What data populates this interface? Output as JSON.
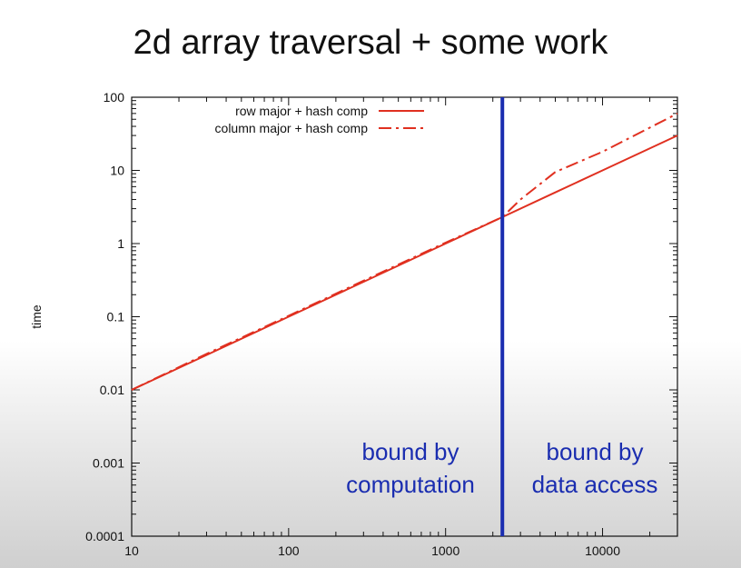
{
  "slide": {
    "title": "2d array traversal + some work"
  },
  "chart_data": {
    "type": "line",
    "title": "",
    "xlabel": "",
    "ylabel": "time",
    "xscale": "log",
    "yscale": "log",
    "xlim": [
      10,
      30000
    ],
    "ylim": [
      0.0001,
      100
    ],
    "x_ticks": [
      {
        "value": 10,
        "label": "10"
      },
      {
        "value": 100,
        "label": "100"
      },
      {
        "value": 1000,
        "label": "1000"
      },
      {
        "value": 10000,
        "label": "10000"
      }
    ],
    "y_ticks": [
      {
        "value": 0.0001,
        "label": "0.0001"
      },
      {
        "value": 0.001,
        "label": "0.001"
      },
      {
        "value": 0.01,
        "label": "0.01"
      },
      {
        "value": 0.1,
        "label": "0.1"
      },
      {
        "value": 1,
        "label": "1"
      },
      {
        "value": 10,
        "label": "10"
      },
      {
        "value": 100,
        "label": "100"
      }
    ],
    "grid": false,
    "legend_position": "top-left",
    "series": [
      {
        "name": "row major + hash comp",
        "style": "solid",
        "color": "#e03020",
        "x": [
          10,
          30,
          100,
          300,
          1000,
          2300,
          5000,
          10000,
          30000
        ],
        "y": [
          0.01,
          0.03,
          0.1,
          0.3,
          1.0,
          2.3,
          5.0,
          10.0,
          30.0
        ]
      },
      {
        "name": "column major + hash comp",
        "style": "dash-dot",
        "color": "#e03020",
        "x": [
          10,
          30,
          100,
          300,
          1000,
          2300,
          3000,
          5000,
          10000,
          30000
        ],
        "y": [
          0.01,
          0.031,
          0.103,
          0.31,
          1.03,
          2.3,
          4.0,
          9.5,
          18.0,
          60.0
        ]
      }
    ],
    "vertical_line": {
      "x": 2300,
      "color": "#1a2db0"
    },
    "annotations": {
      "left": [
        "bound by",
        "computation"
      ],
      "right": [
        "bound by",
        "data access"
      ],
      "color": "#1a2db0"
    }
  }
}
